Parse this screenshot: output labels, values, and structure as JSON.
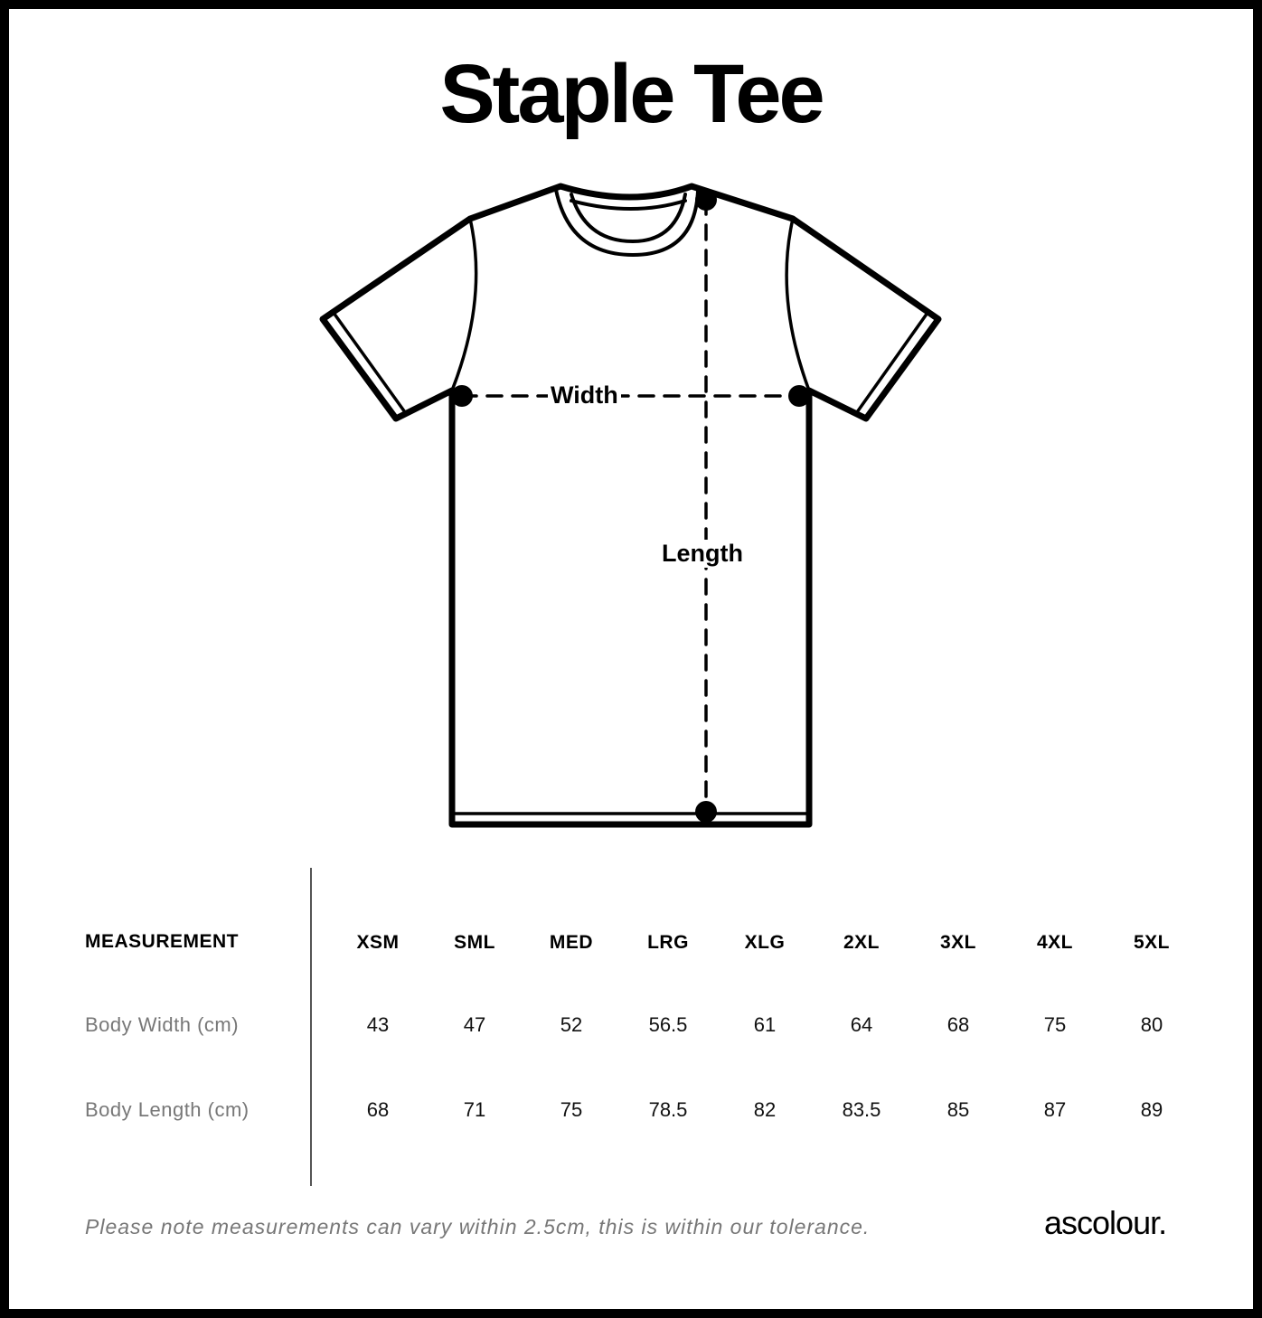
{
  "title": "Staple Tee",
  "diagram": {
    "width_label": "Width",
    "length_label": "Length"
  },
  "table": {
    "header_label": "MEASUREMENT",
    "sizes": [
      "XSM",
      "SML",
      "MED",
      "LRG",
      "XLG",
      "2XL",
      "3XL",
      "4XL",
      "5XL"
    ],
    "rows": [
      {
        "label": "Body Width (cm)",
        "values": [
          "43",
          "47",
          "52",
          "56.5",
          "61",
          "64",
          "68",
          "75",
          "80"
        ]
      },
      {
        "label": "Body Length (cm)",
        "values": [
          "68",
          "71",
          "75",
          "78.5",
          "82",
          "83.5",
          "85",
          "87",
          "89"
        ]
      }
    ]
  },
  "note": "Please note measurements can vary within 2.5cm, this is within our tolerance.",
  "brand": "ascolour."
}
